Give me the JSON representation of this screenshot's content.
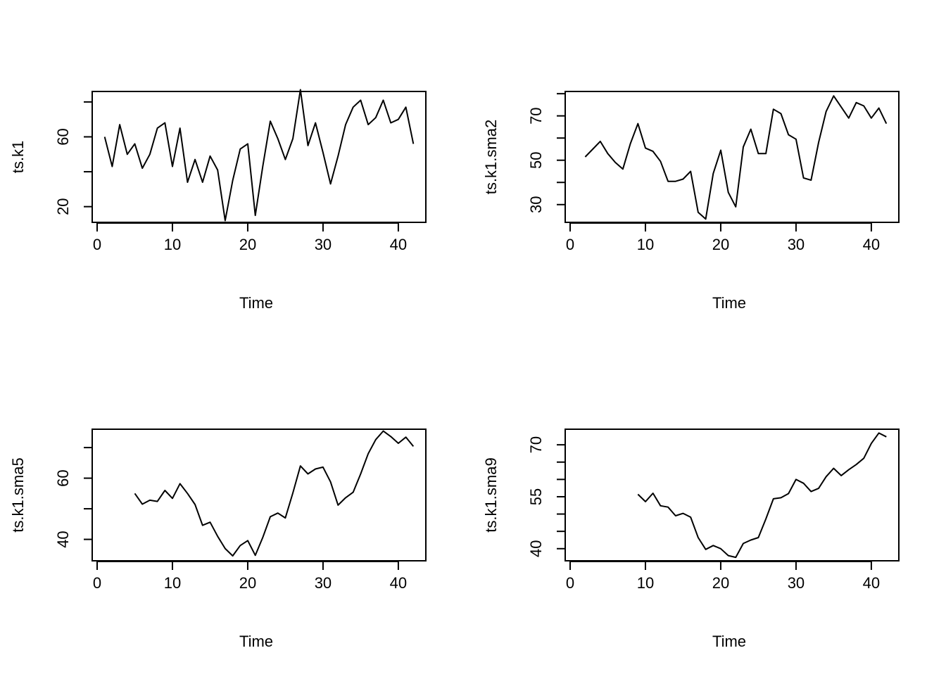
{
  "chart_data": [
    {
      "type": "line",
      "title": "",
      "xlabel": "Time",
      "ylabel": "ts.k1",
      "xlim": [
        0,
        43
      ],
      "ylim": [
        11,
        86
      ],
      "x_ticks": [
        0,
        10,
        20,
        30,
        40
      ],
      "y_ticks": [
        20,
        40,
        60,
        80
      ],
      "y_tick_labels": [
        "20",
        "",
        "60",
        ""
      ],
      "grid": false,
      "series": [
        {
          "x": [
            1,
            2,
            3,
            4,
            5,
            6,
            7,
            8,
            9,
            10,
            11,
            12,
            13,
            14,
            15,
            16,
            17,
            18,
            19,
            20,
            21,
            22,
            23,
            24,
            25,
            26,
            27,
            28,
            29,
            30,
            31,
            32,
            33,
            34,
            35,
            36,
            37,
            38,
            39,
            40,
            41,
            42
          ],
          "values": [
            60,
            43,
            67,
            50,
            56,
            42,
            50,
            65,
            68,
            43,
            65,
            34,
            47,
            34,
            49,
            41,
            12,
            35,
            53,
            56,
            15,
            43,
            69,
            59,
            47,
            59,
            87,
            55,
            68,
            51,
            33,
            49,
            67,
            77,
            81,
            67,
            71,
            81,
            68,
            70,
            77,
            56
          ]
        }
      ]
    },
    {
      "type": "line",
      "title": "",
      "xlabel": "Time",
      "ylabel": "ts.k1.sma2",
      "xlim": [
        0,
        43
      ],
      "ylim": [
        22,
        81
      ],
      "x_ticks": [
        0,
        10,
        20,
        30,
        40
      ],
      "y_ticks": [
        30,
        40,
        50,
        60,
        70,
        80
      ],
      "y_tick_labels": [
        "30",
        "",
        "50",
        "",
        "70",
        ""
      ],
      "grid": false,
      "series": [
        {
          "x": [
            2,
            3,
            4,
            5,
            6,
            7,
            8,
            9,
            10,
            11,
            12,
            13,
            14,
            15,
            16,
            17,
            18,
            19,
            20,
            21,
            22,
            23,
            24,
            25,
            26,
            27,
            28,
            29,
            30,
            31,
            32,
            33,
            34,
            35,
            36,
            37,
            38,
            39,
            40,
            41,
            42
          ],
          "values": [
            51.5,
            55,
            58.5,
            53,
            49,
            46,
            57.5,
            66.5,
            55.5,
            54,
            49.5,
            40.5,
            40.5,
            41.5,
            45,
            26.5,
            23.5,
            44,
            54.5,
            35.5,
            29,
            56,
            64,
            53,
            53,
            73,
            71,
            61.5,
            59.5,
            42,
            41,
            58,
            72,
            79,
            74,
            69,
            76,
            74.5,
            69,
            73.5,
            66.5
          ]
        }
      ]
    },
    {
      "type": "line",
      "title": "",
      "xlabel": "Time",
      "ylabel": "ts.k1.sma5",
      "xlim": [
        0,
        43
      ],
      "ylim": [
        33,
        76
      ],
      "x_ticks": [
        0,
        10,
        20,
        30,
        40
      ],
      "y_ticks": [
        40,
        50,
        60,
        70
      ],
      "y_tick_labels": [
        "40",
        "",
        "60",
        ""
      ],
      "grid": false,
      "series": [
        {
          "x": [
            5,
            6,
            7,
            8,
            9,
            10,
            11,
            12,
            13,
            14,
            15,
            16,
            17,
            18,
            19,
            20,
            21,
            22,
            23,
            24,
            25,
            26,
            27,
            28,
            29,
            30,
            31,
            32,
            33,
            34,
            35,
            36,
            37,
            38,
            39,
            40,
            41,
            42
          ],
          "values": [
            55,
            51.5,
            52.8,
            52.4,
            56,
            53.4,
            58.2,
            55,
            51.4,
            44.6,
            45.6,
            41,
            37,
            34.6,
            38,
            39.6,
            34.8,
            40.6,
            47.4,
            48.6,
            47,
            55.2,
            64,
            61.4,
            63,
            63.6,
            58.8,
            51.2,
            53.6,
            55.4,
            61.4,
            68,
            72.6,
            75.4,
            73.6,
            71.4,
            73.4,
            70.4
          ]
        }
      ]
    },
    {
      "type": "line",
      "title": "",
      "xlabel": "Time",
      "ylabel": "ts.k1.sma9",
      "xlim": [
        0,
        43
      ],
      "ylim": [
        36.5,
        74.5
      ],
      "x_ticks": [
        0,
        10,
        20,
        30,
        40
      ],
      "y_ticks": [
        40,
        45,
        50,
        55,
        60,
        65,
        70
      ],
      "y_tick_labels": [
        "40",
        "",
        "",
        "55",
        "",
        "",
        "70"
      ],
      "grid": false,
      "series": [
        {
          "x": [
            9,
            10,
            11,
            12,
            13,
            14,
            15,
            16,
            17,
            18,
            19,
            20,
            21,
            22,
            23,
            24,
            25,
            26,
            27,
            28,
            29,
            30,
            31,
            32,
            33,
            34,
            35,
            36,
            37,
            38,
            39,
            40,
            41,
            42
          ],
          "values": [
            55.7,
            53.6,
            56,
            52.4,
            52,
            49.5,
            50.2,
            49.1,
            43.2,
            39.8,
            40.9,
            40,
            38,
            37.5,
            41.5,
            42.5,
            43.2,
            48.6,
            54.4,
            54.7,
            55.9,
            60,
            58.9,
            56.5,
            57.4,
            60.8,
            63.2,
            61.1,
            62.8,
            64.3,
            66.1,
            70.4,
            73.4,
            72.3
          ]
        }
      ]
    }
  ]
}
